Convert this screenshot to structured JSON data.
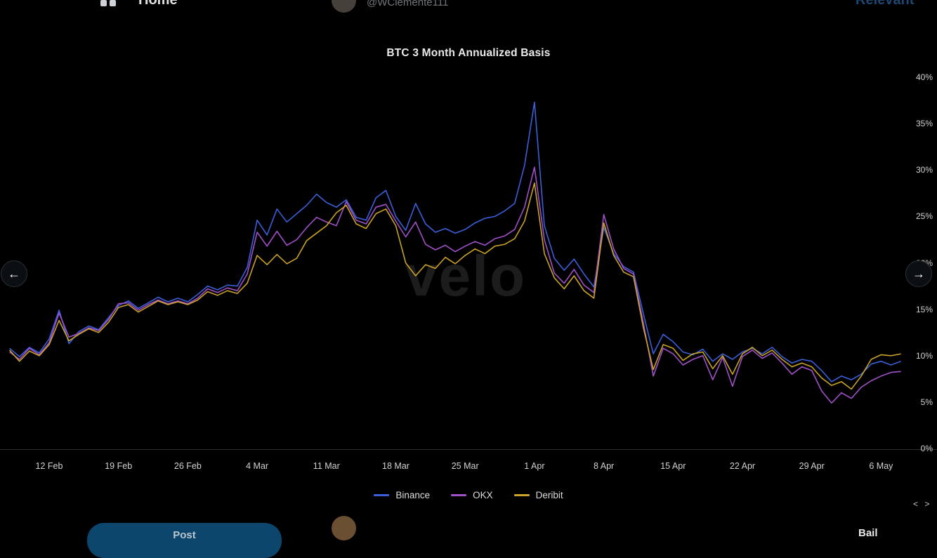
{
  "page": {
    "top_bar": {
      "nav_label": "Home",
      "user_handle": "@WClemente111",
      "right_label": "Relevant"
    },
    "bottom_bar": {
      "post_button": "Post",
      "right_label": "Bail",
      "corner_glyphs": "< >"
    },
    "lightbox": {
      "prev": "←",
      "next": "→"
    }
  },
  "chart_data": {
    "type": "line",
    "title": "BTC 3 Month Annualized Basis",
    "watermark": "velo",
    "xlabel": "",
    "ylabel": "",
    "ylim": [
      0,
      40
    ],
    "grid": false,
    "background": "#000000",
    "legend_position": "bottom",
    "y_ticks": [
      0,
      5,
      10,
      15,
      20,
      25,
      30,
      35,
      40
    ],
    "y_tick_suffix": "%",
    "x_tick_labels": [
      "12 Feb",
      "19 Feb",
      "26 Feb",
      "4 Mar",
      "11 Mar",
      "18 Mar",
      "25 Mar",
      "1 Apr",
      "8 Apr",
      "15 Apr",
      "22 Apr",
      "29 Apr",
      "6 May"
    ],
    "x_tick_days": [
      4,
      11,
      18,
      25,
      32,
      39,
      46,
      53,
      60,
      67,
      74,
      81,
      88
    ],
    "x_unit": "days from 8 Feb, one value per day",
    "series": [
      {
        "name": "Binance",
        "color": "#3a5fd9",
        "values": [
          10.8,
          9.9,
          10.9,
          10.3,
          11.8,
          14.9,
          11.3,
          12.6,
          13.2,
          12.8,
          14.1,
          15.4,
          15.9,
          15.1,
          15.7,
          16.3,
          15.8,
          16.2,
          15.8,
          16.6,
          17.5,
          17.1,
          17.6,
          17.5,
          19.5,
          24.6,
          23.0,
          25.8,
          24.4,
          25.3,
          26.2,
          27.4,
          26.5,
          26.0,
          26.8,
          24.9,
          24.6,
          27.0,
          27.8,
          25.0,
          23.5,
          26.4,
          24.2,
          23.3,
          23.7,
          23.2,
          23.6,
          24.3,
          24.8,
          25.0,
          25.6,
          26.4,
          30.5,
          37.3,
          24.0,
          20.5,
          19.2,
          20.4,
          18.8,
          17.4,
          23.8,
          21.0,
          19.6,
          19.0,
          14.5,
          10.2,
          12.3,
          11.5,
          10.4,
          10.1,
          10.7,
          9.4,
          10.2,
          9.6,
          10.4,
          10.8,
          10.2,
          10.9,
          9.9,
          9.2,
          9.6,
          9.4,
          8.4,
          7.2,
          7.8,
          7.4,
          8.0,
          9.1,
          9.4,
          9.0,
          9.4
        ]
      },
      {
        "name": "OKX",
        "color": "#a050c8",
        "values": [
          10.4,
          9.6,
          10.8,
          10.1,
          11.4,
          14.6,
          12.0,
          12.4,
          13.0,
          12.7,
          13.9,
          15.6,
          15.7,
          14.9,
          15.5,
          16.0,
          15.6,
          15.9,
          15.6,
          16.2,
          17.2,
          16.8,
          17.3,
          17.0,
          18.8,
          23.3,
          21.8,
          23.4,
          21.9,
          22.5,
          23.8,
          24.9,
          24.4,
          24.0,
          26.6,
          24.6,
          24.2,
          26.0,
          26.3,
          24.5,
          22.8,
          24.4,
          22.0,
          21.4,
          21.9,
          21.2,
          21.8,
          22.3,
          21.9,
          22.6,
          22.9,
          23.6,
          26.0,
          30.3,
          22.5,
          18.9,
          17.8,
          19.3,
          17.6,
          16.8,
          25.2,
          21.5,
          19.4,
          18.8,
          13.5,
          7.8,
          10.8,
          10.2,
          9.0,
          9.6,
          10.0,
          7.4,
          9.8,
          6.7,
          9.9,
          10.6,
          9.7,
          10.3,
          9.2,
          8.0,
          8.8,
          8.4,
          6.2,
          4.9,
          6.0,
          5.4,
          6.6,
          7.3,
          7.8,
          8.2,
          8.3
        ]
      },
      {
        "name": "Deribit",
        "color": "#c9a227",
        "values": [
          10.6,
          9.4,
          10.5,
          10.0,
          11.2,
          13.8,
          11.6,
          12.3,
          12.9,
          12.5,
          13.6,
          15.2,
          15.5,
          14.7,
          15.3,
          15.9,
          15.5,
          15.8,
          15.5,
          16.0,
          16.9,
          16.5,
          17.0,
          16.7,
          17.8,
          20.8,
          19.8,
          20.9,
          19.9,
          20.5,
          22.4,
          23.2,
          24.0,
          25.4,
          26.2,
          24.2,
          23.7,
          25.3,
          25.8,
          24.0,
          20.0,
          18.6,
          19.8,
          19.4,
          20.6,
          19.9,
          20.8,
          21.5,
          21.0,
          21.8,
          22.0,
          22.6,
          24.5,
          28.6,
          21.0,
          18.4,
          17.2,
          18.6,
          17.0,
          16.2,
          24.3,
          20.8,
          19.0,
          18.5,
          13.0,
          8.5,
          11.2,
          10.8,
          9.5,
          10.2,
          10.4,
          8.6,
          10.0,
          8.0,
          10.2,
          10.9,
          10.0,
          10.6,
          9.6,
          8.8,
          9.2,
          8.8,
          7.6,
          6.8,
          7.2,
          6.4,
          7.8,
          9.6,
          10.1,
          10.0,
          10.2
        ]
      }
    ]
  }
}
